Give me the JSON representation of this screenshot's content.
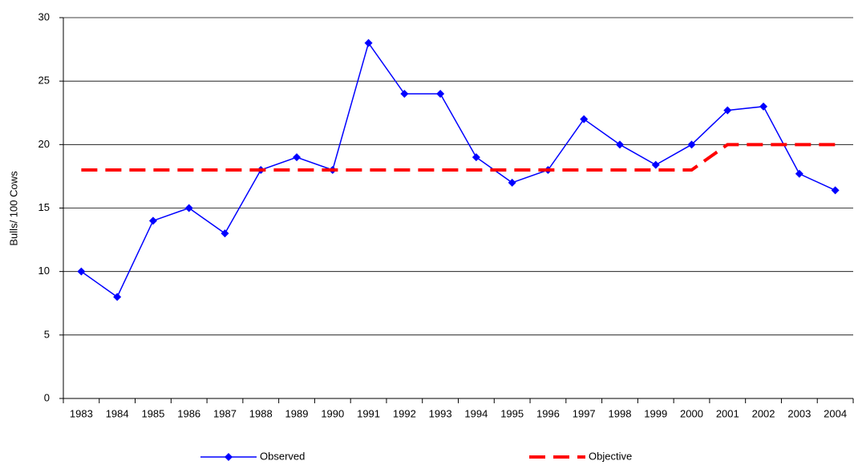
{
  "chart_data": {
    "type": "line",
    "y_label": "Bulls/ 100 Cows",
    "categories": [
      "1983",
      "1984",
      "1985",
      "1986",
      "1987",
      "1988",
      "1989",
      "1990",
      "1991",
      "1992",
      "1993",
      "1994",
      "1995",
      "1996",
      "1997",
      "1998",
      "1999",
      "2000",
      "2001",
      "2002",
      "2003",
      "2004"
    ],
    "series": [
      {
        "name": "Observed",
        "color": "#0000ff",
        "style": "solid",
        "marker": "diamond",
        "values": [
          10,
          8,
          14,
          15,
          13,
          18,
          19,
          18,
          28,
          24,
          24,
          19,
          17,
          18,
          22,
          20,
          18.4,
          20,
          22.7,
          23,
          17.7,
          16.4
        ]
      },
      {
        "name": "Objective",
        "color": "#ff0000",
        "style": "dashed",
        "marker": "none",
        "values": [
          18,
          18,
          18,
          18,
          18,
          18,
          18,
          18,
          18,
          18,
          18,
          18,
          18,
          18,
          18,
          18,
          18,
          18,
          20,
          20,
          20,
          20
        ]
      }
    ],
    "ylim": [
      0,
      30
    ],
    "yticks": [
      0,
      5,
      10,
      15,
      20,
      25,
      30
    ],
    "grid": true
  }
}
